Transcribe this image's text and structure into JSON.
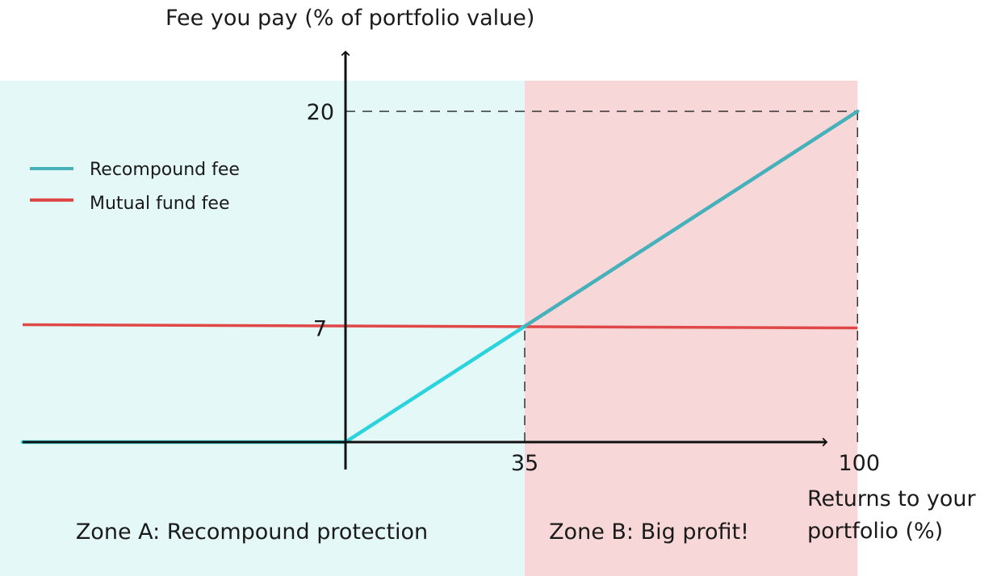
{
  "chart_data": {
    "type": "line",
    "title": "",
    "xlabel": "Returns to your portfolio (%)",
    "ylabel": "Fee you pay (% of portfolio value)",
    "x_ticks": [
      "35",
      "100"
    ],
    "y_ticks": [
      "7",
      "20"
    ],
    "xlim": [
      -65,
      100
    ],
    "ylim": [
      0,
      20
    ],
    "grid": false,
    "legend_position": "top-left",
    "series": [
      {
        "name": "Recompound fee",
        "color": "#2bd3dc",
        "color_zone_b": "#46b0bb",
        "x": [
          -65,
          0,
          35,
          100
        ],
        "y": [
          0,
          0,
          7,
          20
        ]
      },
      {
        "name": "Mutual fund fee",
        "color": "#e04848",
        "x": [
          -65,
          100
        ],
        "y": [
          7,
          7
        ]
      }
    ],
    "reference_lines": [
      {
        "style": "dashed",
        "from": [
          0,
          20
        ],
        "to": [
          100,
          20
        ]
      },
      {
        "style": "dashed",
        "from": [
          35,
          0
        ],
        "to": [
          35,
          7
        ]
      },
      {
        "style": "dashed",
        "from": [
          100,
          0
        ],
        "to": [
          100,
          20
        ]
      }
    ],
    "zones": [
      {
        "label": "Zone A: Recompound protection",
        "x_from": -65,
        "x_to": 35,
        "color": "#e4f8f8"
      },
      {
        "label": "Zone B: Big profit!",
        "x_from": 35,
        "x_to": 100,
        "color": "#f7d7d7"
      }
    ]
  }
}
